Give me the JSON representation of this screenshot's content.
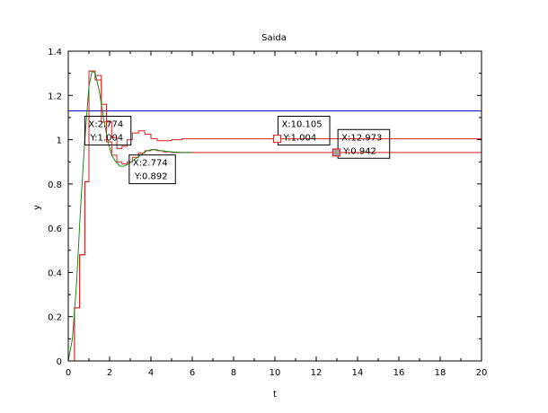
{
  "chart_data": {
    "type": "line",
    "title": "Saida",
    "xlabel": "t",
    "ylabel": "y",
    "xlim": [
      0,
      20
    ],
    "ylim": [
      0,
      1.4
    ],
    "xticks": [
      0,
      2,
      4,
      6,
      8,
      10,
      12,
      14,
      16,
      18,
      20
    ],
    "yticks": [
      0,
      0.2,
      0.4,
      0.6,
      0.8,
      1,
      1.2,
      1.4
    ],
    "grid": false,
    "series": [
      {
        "color": "#0000cc",
        "style": "line",
        "points": [
          [
            0,
            1.13
          ],
          [
            20,
            1.13
          ]
        ]
      },
      {
        "color": "#d42020",
        "style": "step",
        "points": [
          [
            0,
            0
          ],
          [
            0.3,
            0.24
          ],
          [
            0.55,
            0.48
          ],
          [
            0.8,
            0.81
          ],
          [
            1.0,
            1.31
          ],
          [
            1.3,
            1.29
          ],
          [
            1.6,
            1.16
          ],
          [
            1.85,
            1.08
          ],
          [
            2.1,
            1.01
          ],
          [
            2.35,
            0.96
          ],
          [
            2.6,
            0.97
          ],
          [
            2.85,
            1.0
          ],
          [
            3.1,
            1.03
          ],
          [
            3.4,
            1.04
          ],
          [
            3.7,
            1.025
          ],
          [
            4.0,
            1.005
          ],
          [
            4.3,
            0.995
          ],
          [
            4.6,
            0.995
          ],
          [
            5.0,
            1.0
          ],
          [
            5.5,
            1.004
          ],
          [
            20,
            1.004
          ]
        ]
      },
      {
        "color": "#d42020",
        "style": "step",
        "points": [
          [
            0,
            0
          ],
          [
            0.3,
            0.24
          ],
          [
            0.55,
            0.48
          ],
          [
            0.8,
            0.81
          ],
          [
            1.0,
            1.31
          ],
          [
            1.3,
            1.27
          ],
          [
            1.6,
            1.08
          ],
          [
            1.85,
            0.99
          ],
          [
            2.1,
            0.93
          ],
          [
            2.35,
            0.9
          ],
          [
            2.6,
            0.89
          ],
          [
            2.85,
            0.9
          ],
          [
            3.1,
            0.92
          ],
          [
            3.4,
            0.94
          ],
          [
            3.7,
            0.95
          ],
          [
            4.0,
            0.955
          ],
          [
            4.3,
            0.95
          ],
          [
            4.6,
            0.945
          ],
          [
            5.0,
            0.942
          ],
          [
            20,
            0.942
          ]
        ]
      },
      {
        "color": "#1a8a1a",
        "style": "line",
        "points": [
          [
            0,
            0
          ],
          [
            0.2,
            0.1
          ],
          [
            0.4,
            0.35
          ],
          [
            0.6,
            0.7
          ],
          [
            0.8,
            1.0
          ],
          [
            1.0,
            1.24
          ],
          [
            1.15,
            1.31
          ],
          [
            1.3,
            1.3
          ],
          [
            1.5,
            1.22
          ],
          [
            1.7,
            1.1
          ],
          [
            1.9,
            1.0
          ],
          [
            2.1,
            0.93
          ],
          [
            2.3,
            0.9
          ],
          [
            2.5,
            0.88
          ],
          [
            2.7,
            0.88
          ],
          [
            2.9,
            0.89
          ],
          [
            3.2,
            0.91
          ],
          [
            3.5,
            0.93
          ],
          [
            3.8,
            0.95
          ],
          [
            4.1,
            0.955
          ],
          [
            4.5,
            0.95
          ],
          [
            5.0,
            0.945
          ],
          [
            5.5,
            0.942
          ],
          [
            6,
            0.942
          ]
        ]
      }
    ],
    "datatips": [
      {
        "x": 2.774,
        "y": 1.004,
        "label_x": "X:2.774",
        "label_y": "Y:1.004",
        "marker": "none",
        "box_at": [
          0.8,
          1.045
        ]
      },
      {
        "x": 2.774,
        "y": 0.892,
        "label_x": "X:2.774",
        "label_y": "Y:0.892",
        "marker": "none",
        "box_at": [
          2.95,
          0.87
        ]
      },
      {
        "x": 10.105,
        "y": 1.004,
        "label_x": "X:10.105",
        "label_y": "Y:1.004",
        "marker": "open-square",
        "box_at": [
          10.15,
          1.045
        ]
      },
      {
        "x": 12.973,
        "y": 0.942,
        "label_x": "X:12.973",
        "label_y": "Y:0.942",
        "marker": "filled-square",
        "box_at": [
          13.05,
          0.985
        ]
      }
    ]
  }
}
